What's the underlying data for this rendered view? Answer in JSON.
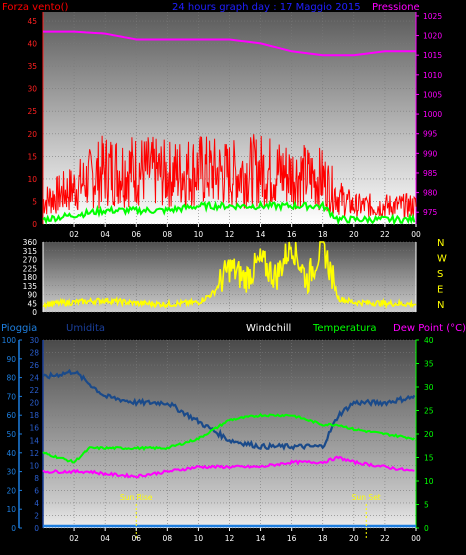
{
  "header": {
    "left_label": "Forza vento()",
    "title": "24 hours graph day : 17 Maggio 2015",
    "right_label": "Pressione"
  },
  "x_tick_labels": [
    "02",
    "04",
    "06",
    "08",
    "10",
    "12",
    "14",
    "16",
    "18",
    "20",
    "22",
    "00"
  ],
  "colors": {
    "wind": "#ff0000",
    "gust_avg": "#00ff00",
    "pressure": "#ff00ff",
    "direction": "#ffff00",
    "rain": "#1e7fe0",
    "humidity": "#1a4a8a",
    "temperature": "#00ff00",
    "dewpoint": "#ff00ff",
    "windchill": "#ffffff",
    "left_axis_wind": "#ff2020",
    "humidity_axis": "#1a3f9a"
  },
  "wind_direction_labels": [
    "N",
    "W",
    "S",
    "E",
    "N"
  ],
  "bottom_labels": {
    "rain": "Pioggia",
    "humidity": "Umidita",
    "windchill": "Windchill",
    "temperature": "Temperatura",
    "dewpoint": "Dew Point (°C)",
    "sunrise": "Sun Rise",
    "sunset": "Sun Set"
  },
  "chart_data": [
    {
      "type": "line",
      "title": "24 hours graph day : 17 Maggio 2015",
      "ylabel": "Forza vento()",
      "y2label": "Pressione",
      "ylim": [
        0,
        47
      ],
      "yticks": [
        0,
        5,
        10,
        15,
        20,
        25,
        30,
        35,
        40,
        45
      ],
      "y2lim": [
        972,
        1026
      ],
      "y2ticks": [
        975,
        980,
        985,
        990,
        995,
        1000,
        1005,
        1010,
        1015,
        1020,
        1025
      ],
      "x_hours": [
        0,
        2,
        4,
        6,
        8,
        10,
        12,
        14,
        16,
        18,
        19,
        20,
        22,
        24
      ],
      "series": [
        {
          "name": "Pressione",
          "axis": "right",
          "values": [
            1021,
            1021,
            1020.5,
            1019,
            1019,
            1019,
            1019,
            1018,
            1016,
            1015,
            1015,
            1015,
            1016,
            1016
          ]
        },
        {
          "name": "Forza vento",
          "axis": "left",
          "values": [
            5,
            8,
            12,
            12,
            11,
            12,
            11,
            12,
            11,
            10,
            6,
            4,
            4,
            4
          ]
        },
        {
          "axis": "left",
          "values": [
            1,
            2,
            3,
            3,
            3,
            4,
            4,
            4,
            4,
            4,
            1,
            1,
            1,
            1
          ]
        }
      ]
    },
    {
      "type": "line",
      "ylim": [
        0,
        360
      ],
      "yticks": [
        0,
        45,
        90,
        135,
        180,
        225,
        270,
        315,
        360
      ],
      "x_hours": [
        0,
        2,
        4,
        6,
        8,
        10,
        11,
        12,
        13,
        14,
        15,
        16,
        17,
        18,
        19,
        20,
        22,
        24
      ],
      "series": [
        {
          "values": [
            40,
            50,
            60,
            45,
            40,
            50,
            100,
            230,
            170,
            260,
            180,
            355,
            160,
            350,
            70,
            50,
            45,
            40
          ]
        }
      ]
    },
    {
      "type": "line",
      "title": "",
      "ylabel": "Umidita",
      "ylim": [
        0,
        30
      ],
      "yticks": [
        0,
        2,
        4,
        6,
        8,
        10,
        12,
        14,
        16,
        18,
        20,
        22,
        24,
        26,
        28,
        30
      ],
      "y_rain_ticks": [
        0,
        10,
        20,
        30,
        40,
        50,
        60,
        70,
        80,
        90,
        100
      ],
      "y2lim": [
        0,
        40
      ],
      "y2ticks": [
        0,
        5,
        10,
        15,
        20,
        25,
        30,
        35,
        40
      ],
      "x_hours": [
        0,
        1,
        2,
        3,
        4,
        6,
        8,
        10,
        12,
        14,
        16,
        18,
        19,
        20,
        22,
        24
      ],
      "series": [
        {
          "name": "Umidita",
          "axis": "left",
          "values": [
            24,
            24.5,
            25,
            23,
            21,
            20,
            20,
            17,
            14,
            13,
            13,
            13,
            18,
            20,
            20,
            21
          ]
        },
        {
          "name": "Temperatura",
          "axis": "right",
          "values": [
            16,
            15,
            14,
            17,
            17,
            17,
            17,
            19,
            23,
            24,
            24,
            22,
            22,
            21,
            20,
            19
          ]
        },
        {
          "name": "Dew Point (°C)",
          "axis": "right",
          "values": [
            12,
            12,
            12,
            12,
            11.5,
            11,
            12,
            13,
            13,
            13,
            14,
            14,
            15,
            14,
            13,
            12
          ]
        },
        {
          "name": "Pioggia",
          "axis": "rain",
          "values": [
            0,
            0,
            0,
            0,
            0,
            0,
            0,
            0,
            0,
            0,
            0,
            0,
            0,
            0,
            0,
            0
          ]
        }
      ],
      "annotations": [
        {
          "text": "Sun Rise",
          "hour": 6
        },
        {
          "text": "Sun Set",
          "hour": 20.8
        }
      ]
    }
  ]
}
